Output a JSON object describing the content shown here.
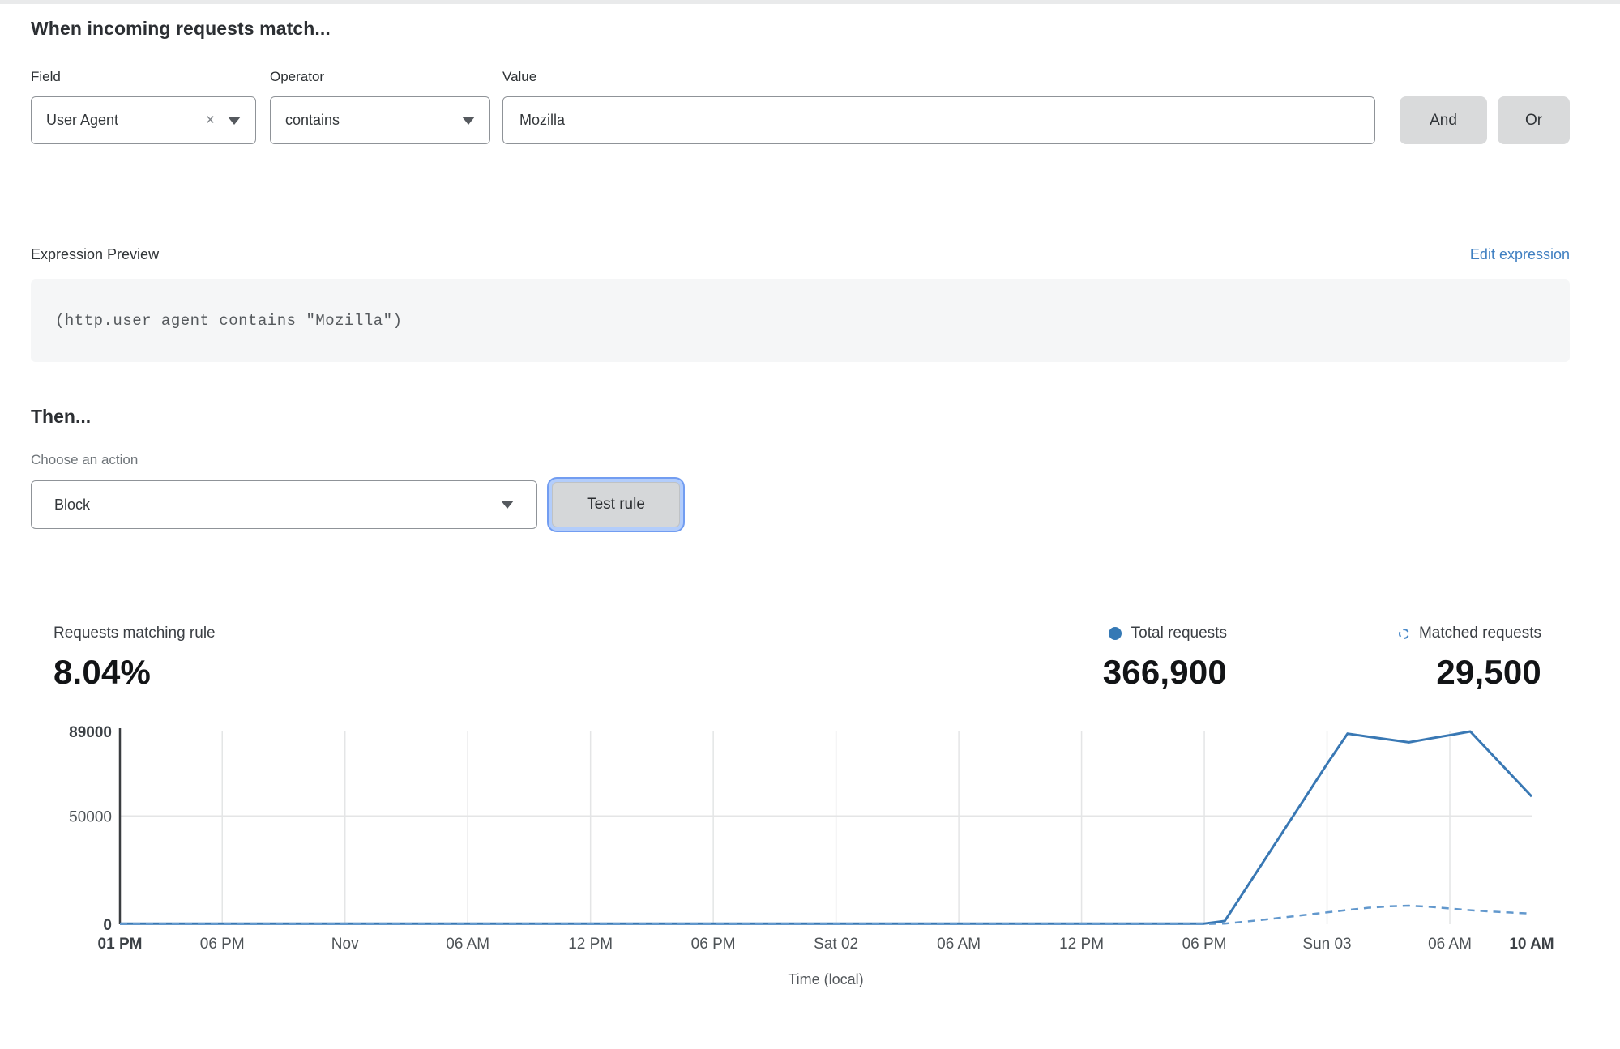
{
  "match_section": {
    "heading": "When incoming requests match...",
    "field": {
      "label": "Field",
      "value": "User Agent"
    },
    "operator": {
      "label": "Operator",
      "value": "contains"
    },
    "value": {
      "label": "Value",
      "value": "Mozilla"
    },
    "and_label": "And",
    "or_label": "Or"
  },
  "expression": {
    "label": "Expression Preview",
    "edit_link": "Edit expression",
    "code": "(http.user_agent contains \"Mozilla\")"
  },
  "then_section": {
    "heading": "Then...",
    "choose_label": "Choose an action",
    "action_value": "Block",
    "test_button_label": "Test rule"
  },
  "stats": {
    "matching_label": "Requests matching rule",
    "matching_value": "8.04%",
    "total_label": "Total requests",
    "total_value": "366,900",
    "matched_label": "Matched requests",
    "matched_value": "29,500"
  },
  "colors": {
    "total_line": "#3978b4",
    "matched_line": "#6298cd",
    "legend_dot": "#3579b5",
    "link_blue": "#3f7fc1",
    "focus_ring": "#729df1",
    "grid": "#e4e5e6",
    "axis": "#3a3d40",
    "tick_text": "#4e5357",
    "tick_text_bold": "#3d4247"
  },
  "chart_data": {
    "type": "line",
    "title": "",
    "xlabel": "Time (local)",
    "ylabel": "",
    "ylim": [
      0,
      89000
    ],
    "x_hours_total": 69,
    "grid": true,
    "legend_position": "above-right",
    "yticks": [
      {
        "label": "89000",
        "value": 89000,
        "bold": true
      },
      {
        "label": "50000",
        "value": 50000,
        "bold": false
      },
      {
        "label": "0",
        "value": 0,
        "bold": true
      }
    ],
    "xticks": [
      {
        "label": "01 PM",
        "hour": 0,
        "bold": true
      },
      {
        "label": "06 PM",
        "hour": 5,
        "bold": false
      },
      {
        "label": "Nov",
        "hour": 11,
        "bold": false
      },
      {
        "label": "06 AM",
        "hour": 17,
        "bold": false
      },
      {
        "label": "12 PM",
        "hour": 23,
        "bold": false
      },
      {
        "label": "06 PM",
        "hour": 29,
        "bold": false
      },
      {
        "label": "Sat 02",
        "hour": 35,
        "bold": false
      },
      {
        "label": "06 AM",
        "hour": 41,
        "bold": false
      },
      {
        "label": "12 PM",
        "hour": 47,
        "bold": false
      },
      {
        "label": "06 PM",
        "hour": 53,
        "bold": false
      },
      {
        "label": "Sun 03",
        "hour": 59,
        "bold": false
      },
      {
        "label": "06 AM",
        "hour": 65,
        "bold": false
      },
      {
        "label": "10 AM",
        "hour": 69,
        "bold": true
      }
    ],
    "series": [
      {
        "name": "Total requests",
        "style": "solid",
        "color": "#3978b4",
        "start_hour": 0,
        "step_hours": 1,
        "values": [
          300,
          300,
          300,
          300,
          300,
          300,
          300,
          300,
          300,
          300,
          300,
          300,
          300,
          300,
          300,
          300,
          300,
          300,
          300,
          300,
          300,
          300,
          300,
          300,
          300,
          300,
          300,
          300,
          300,
          300,
          300,
          300,
          300,
          300,
          300,
          300,
          300,
          300,
          300,
          300,
          300,
          300,
          300,
          300,
          300,
          300,
          300,
          300,
          300,
          300,
          300,
          300,
          300,
          300,
          1500,
          16000,
          30500,
          45000,
          59500,
          74000,
          88000,
          86600,
          85300,
          84000,
          85700,
          87300,
          89000,
          79000,
          69000,
          59000
        ]
      },
      {
        "name": "Matched requests",
        "style": "dashed",
        "color": "#6298cd",
        "start_hour": 0,
        "step_hours": 1,
        "values": [
          100,
          100,
          100,
          100,
          100,
          100,
          100,
          100,
          100,
          100,
          100,
          100,
          100,
          100,
          100,
          100,
          100,
          100,
          100,
          100,
          100,
          100,
          100,
          100,
          100,
          100,
          100,
          100,
          100,
          100,
          100,
          100,
          100,
          100,
          100,
          100,
          100,
          100,
          100,
          100,
          100,
          100,
          100,
          100,
          100,
          100,
          100,
          100,
          100,
          100,
          100,
          100,
          100,
          100,
          300,
          1200,
          2200,
          3300,
          4400,
          5500,
          6600,
          7600,
          8300,
          8600,
          8100,
          7300,
          6500,
          5900,
          5400,
          4900
        ]
      }
    ]
  }
}
